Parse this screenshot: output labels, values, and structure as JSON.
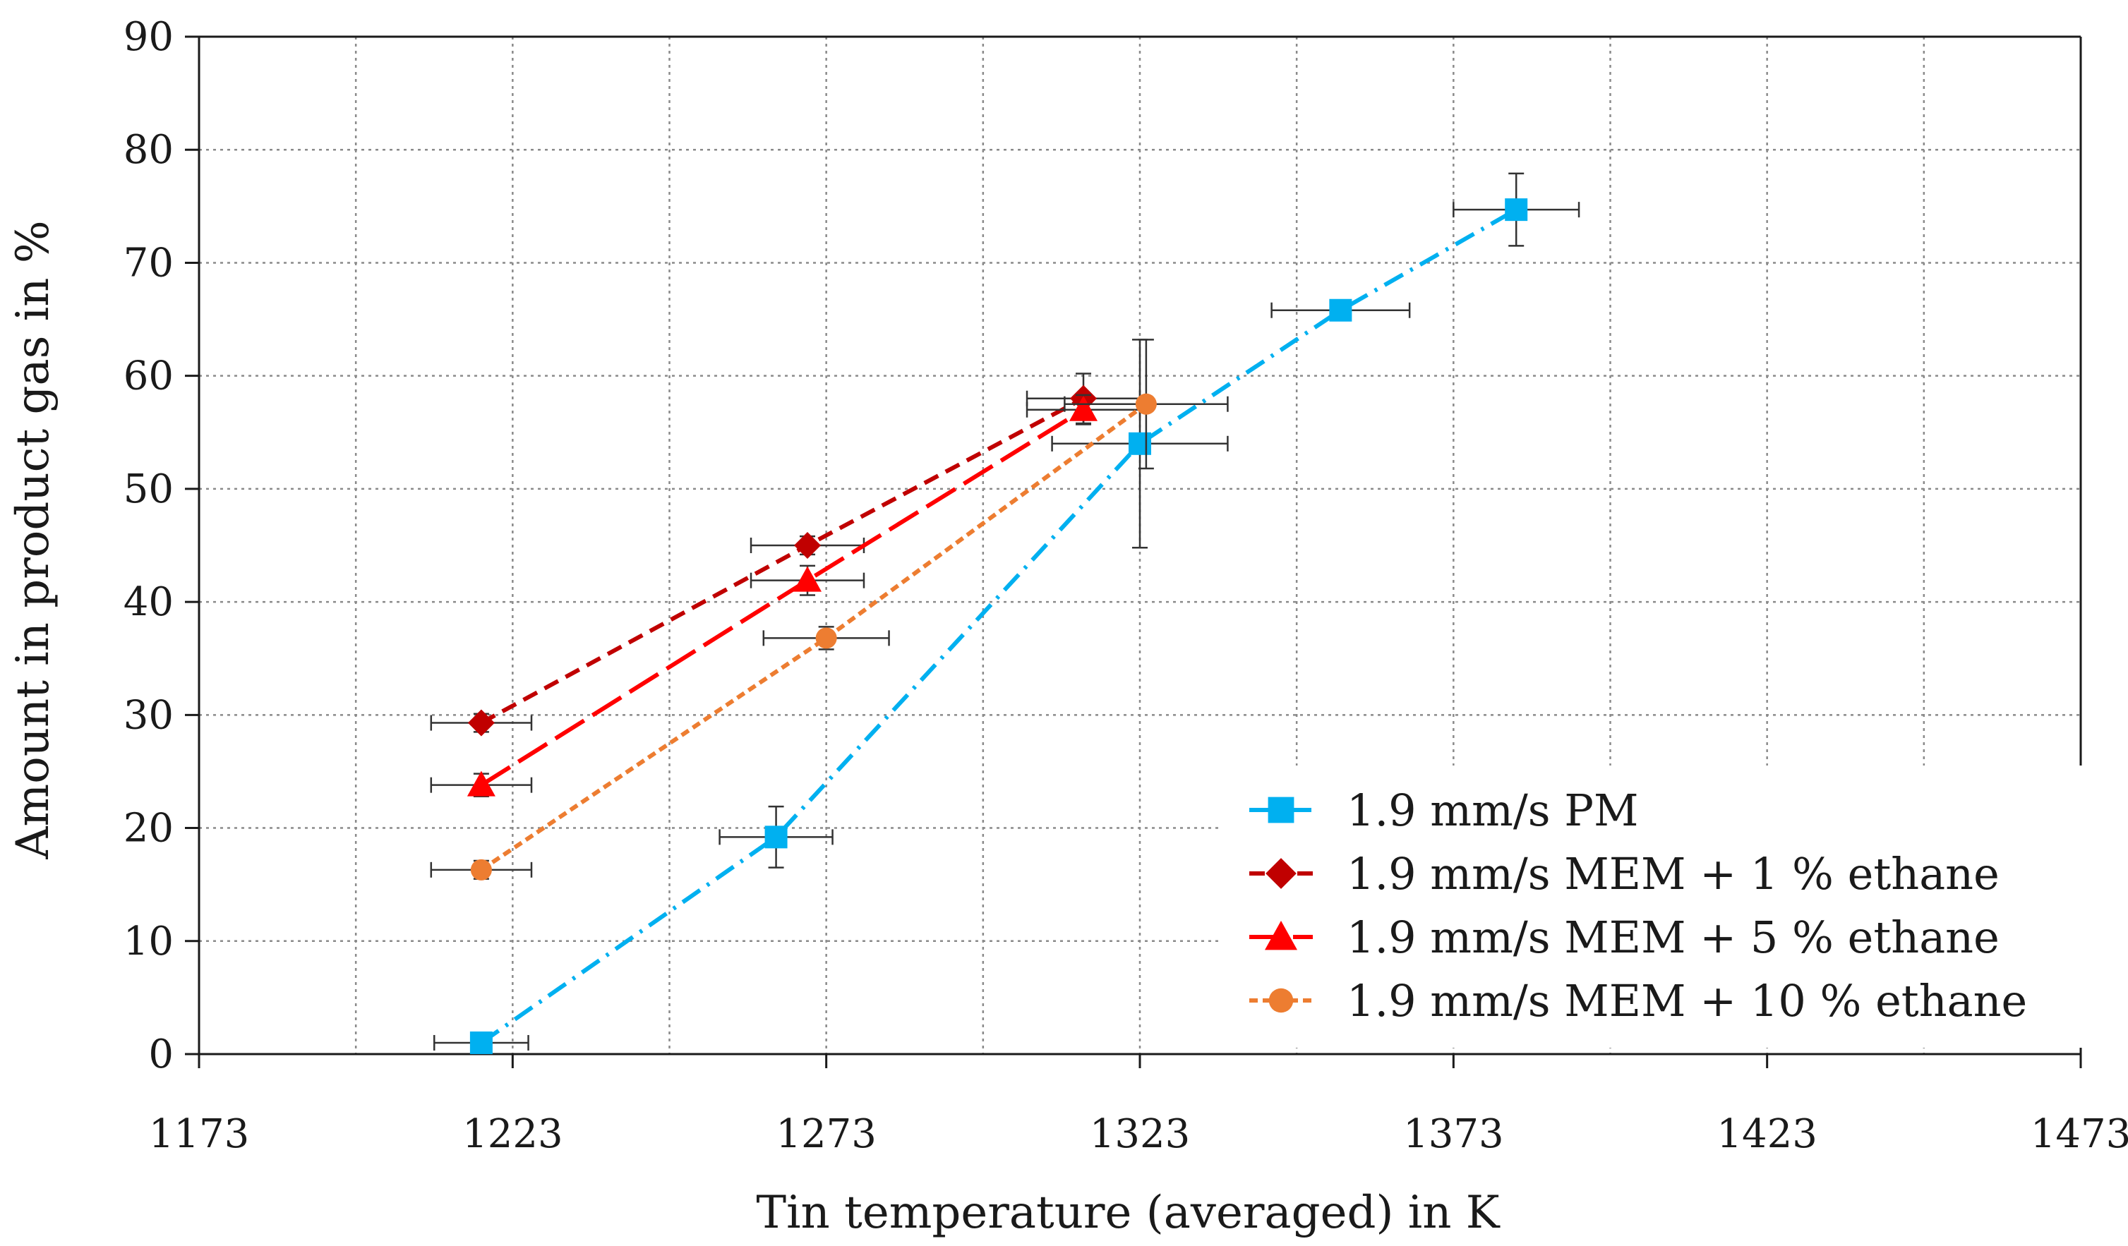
{
  "chart_data": {
    "type": "scatter",
    "title": "",
    "xlabel": "Tin temperature (averaged) in K",
    "ylabel": "Amount in product gas in %",
    "xlim": [
      1173,
      1473
    ],
    "ylim": [
      0,
      90
    ],
    "xticks": [
      1173,
      1223,
      1273,
      1323,
      1373,
      1423,
      1473
    ],
    "yticks": [
      0,
      10,
      20,
      30,
      40,
      50,
      60,
      70,
      80,
      90
    ],
    "grid": true,
    "legend_position": "bottom-right",
    "series": [
      {
        "name": "1.9 mm/s PM",
        "marker": "square",
        "color": "#00B0F0",
        "line": "dash-dot",
        "points": [
          {
            "x": 1218,
            "y": 1.0,
            "xerr": 7.5,
            "yerr": 0.3
          },
          {
            "x": 1265,
            "y": 19.2,
            "xerr": 9,
            "yerr": 2.7
          },
          {
            "x": 1323,
            "y": 54.0,
            "xerr": 14,
            "yerr": 9.2
          },
          {
            "x": 1355,
            "y": 65.8,
            "xerr": 11,
            "yerr": 0.5
          },
          {
            "x": 1383,
            "y": 74.7,
            "xerr": 10,
            "yerr": 3.2
          }
        ]
      },
      {
        "name": "1.9 mm/s MEM + 1 % ethane",
        "marker": "diamond",
        "color": "#C00000",
        "line": "dashed",
        "points": [
          {
            "x": 1218,
            "y": 29.3,
            "xerr": 8,
            "yerr": 0.8
          },
          {
            "x": 1270,
            "y": 45.0,
            "xerr": 9,
            "yerr": 0.8
          },
          {
            "x": 1314,
            "y": 58.0,
            "xerr": 9,
            "yerr": 2.2
          }
        ]
      },
      {
        "name": "1.9 mm/s MEM + 5 % ethane",
        "marker": "triangle",
        "color": "#FF0000",
        "line": "long-dash",
        "points": [
          {
            "x": 1218,
            "y": 23.8,
            "xerr": 8,
            "yerr": 1.0
          },
          {
            "x": 1270,
            "y": 41.9,
            "xerr": 9,
            "yerr": 1.3
          },
          {
            "x": 1314,
            "y": 57.0,
            "xerr": 9,
            "yerr": 1.3
          }
        ]
      },
      {
        "name": "1.9 mm/s MEM + 10 % ethane",
        "marker": "circle",
        "color": "#ED7D31",
        "line": "dotted",
        "points": [
          {
            "x": 1218,
            "y": 16.3,
            "xerr": 8,
            "yerr": 0.8
          },
          {
            "x": 1273,
            "y": 36.8,
            "xerr": 10,
            "yerr": 1.0
          },
          {
            "x": 1324,
            "y": 57.5,
            "xerr": 13,
            "yerr": 5.7
          }
        ]
      }
    ]
  }
}
